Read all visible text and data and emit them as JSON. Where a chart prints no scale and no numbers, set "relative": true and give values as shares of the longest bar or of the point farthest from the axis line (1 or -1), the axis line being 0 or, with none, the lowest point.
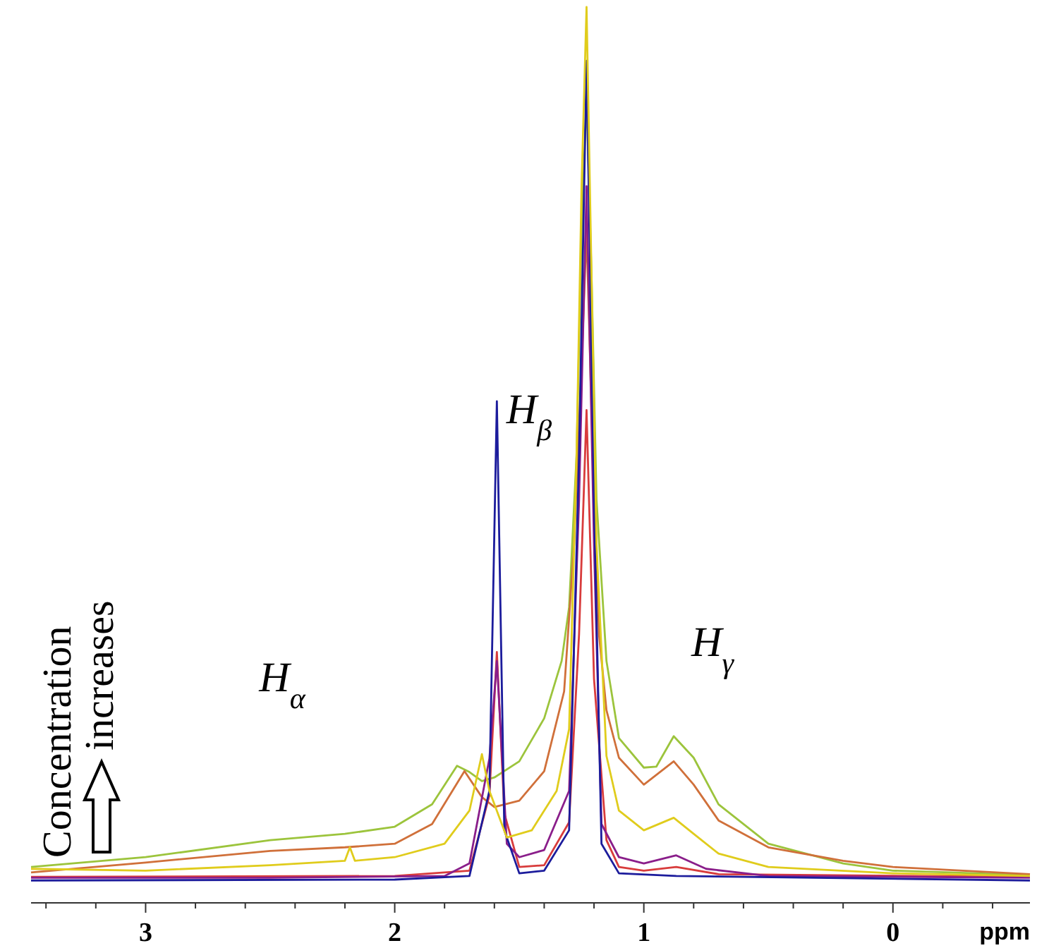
{
  "chart_data": {
    "type": "line",
    "relative": true,
    "xlabel": "ppm",
    "xlim": [
      3.46,
      -0.55
    ],
    "xticks": [
      {
        "value": 3.4,
        "label": null
      },
      {
        "value": 3.2,
        "label": null
      },
      3,
      {
        "value": 2.8,
        "label": null
      },
      {
        "value": 2.6,
        "label": null
      },
      {
        "value": 2.4,
        "label": null
      },
      {
        "value": 2.2,
        "label": null
      },
      2,
      {
        "value": 1.8,
        "label": null
      },
      {
        "value": 1.6,
        "label": null
      },
      {
        "value": 1.4,
        "label": null
      },
      {
        "value": 1.2,
        "label": null
      },
      1,
      {
        "value": 0.8,
        "label": null
      },
      {
        "value": 0.6,
        "label": null
      },
      {
        "value": 0.4,
        "label": null
      },
      {
        "value": 0.2,
        "label": null
      },
      0,
      {
        "value": -0.2,
        "label": null
      },
      {
        "value": -0.4,
        "label": null
      }
    ],
    "grid": false,
    "marker": "none",
    "line_style": "solid",
    "tick_labels": "x",
    "annotations": [
      "H$_{α}$",
      "H$_{β}$",
      "H$_{γ}$",
      "Concentration increases"
    ],
    "series": [
      {
        "color": "#9cc43c",
        "x": [
          3.46,
          3.0,
          2.5,
          2.2,
          2.0,
          1.85,
          1.75,
          1.7,
          1.65,
          1.6,
          1.5,
          1.4,
          1.33,
          1.3,
          1.27,
          1.25,
          1.23,
          1.21,
          1.19,
          1.15,
          1.1,
          1.0,
          0.95,
          0.88,
          0.8,
          0.7,
          0.5,
          0.2,
          0,
          -0.55
        ],
        "values": [
          0.04,
          0.051,
          0.07,
          0.077,
          0.085,
          0.11,
          0.153,
          0.146,
          0.136,
          0.14,
          0.158,
          0.206,
          0.27,
          0.33,
          0.5,
          0.75,
          0.9,
          0.7,
          0.45,
          0.27,
          0.184,
          0.151,
          0.152,
          0.186,
          0.162,
          0.11,
          0.066,
          0.044,
          0.036,
          0.031
        ]
      },
      {
        "color": "#d0703a",
        "x": [
          3.46,
          3.0,
          2.5,
          2.2,
          2.0,
          1.85,
          1.72,
          1.65,
          1.6,
          1.5,
          1.4,
          1.32,
          1.28,
          1.25,
          1.23,
          1.21,
          1.18,
          1.15,
          1.1,
          1.0,
          0.88,
          0.8,
          0.7,
          0.5,
          0.2,
          0,
          -0.55
        ],
        "values": [
          0.034,
          0.045,
          0.058,
          0.062,
          0.066,
          0.088,
          0.147,
          0.118,
          0.107,
          0.114,
          0.147,
          0.236,
          0.4,
          0.6,
          0.75,
          0.55,
          0.3,
          0.215,
          0.162,
          0.132,
          0.158,
          0.132,
          0.092,
          0.062,
          0.047,
          0.04,
          0.032
        ]
      },
      {
        "color": "#d83c3c",
        "x": [
          3.46,
          2.0,
          1.7,
          1.62,
          1.59,
          1.56,
          1.5,
          1.4,
          1.3,
          1.26,
          1.23,
          1.2,
          1.15,
          1.1,
          1.0,
          0.87,
          0.7,
          -0.55
        ],
        "values": [
          0.029,
          0.03,
          0.036,
          0.12,
          0.28,
          0.1,
          0.04,
          0.042,
          0.09,
          0.3,
          0.55,
          0.25,
          0.07,
          0.04,
          0.036,
          0.04,
          0.032,
          0.029
        ]
      },
      {
        "color": "#8a1e8a",
        "x": [
          3.46,
          2.5,
          1.8,
          1.7,
          1.62,
          1.59,
          1.55,
          1.5,
          1.4,
          1.3,
          1.26,
          1.23,
          1.2,
          1.17,
          1.1,
          1.0,
          0.87,
          0.75,
          0.5,
          -0.55
        ],
        "values": [
          0.028,
          0.028,
          0.03,
          0.044,
          0.161,
          0.27,
          0.066,
          0.051,
          0.059,
          0.125,
          0.45,
          0.8,
          0.4,
          0.088,
          0.051,
          0.044,
          0.053,
          0.038,
          0.03,
          0.028
        ]
      },
      {
        "color": "#1c1c9c",
        "x": [
          3.46,
          2.0,
          1.7,
          1.62,
          1.59,
          1.56,
          1.5,
          1.4,
          1.3,
          1.26,
          1.23,
          1.2,
          1.17,
          1.1,
          0.87,
          -0.55
        ],
        "values": [
          0.025,
          0.026,
          0.03,
          0.125,
          0.56,
          0.081,
          0.033,
          0.036,
          0.081,
          0.5,
          0.94,
          0.45,
          0.066,
          0.033,
          0.03,
          0.025
        ]
      },
      {
        "color": "#e0cc1c",
        "x": [
          3.46,
          3.0,
          2.5,
          2.2,
          2.18,
          2.16,
          2.0,
          1.8,
          1.7,
          1.65,
          1.62,
          1.55,
          1.45,
          1.35,
          1.3,
          1.27,
          1.25,
          1.23,
          1.21,
          1.19,
          1.15,
          1.1,
          1.0,
          0.88,
          0.8,
          0.7,
          0.5,
          0,
          -0.55
        ],
        "values": [
          0.038,
          0.036,
          0.042,
          0.047,
          0.062,
          0.047,
          0.051,
          0.066,
          0.103,
          0.166,
          0.125,
          0.073,
          0.081,
          0.125,
          0.194,
          0.5,
          0.8,
          1,
          0.7,
          0.4,
          0.164,
          0.103,
          0.081,
          0.095,
          0.077,
          0.055,
          0.04,
          0.033,
          0.03
        ]
      }
    ]
  }
}
